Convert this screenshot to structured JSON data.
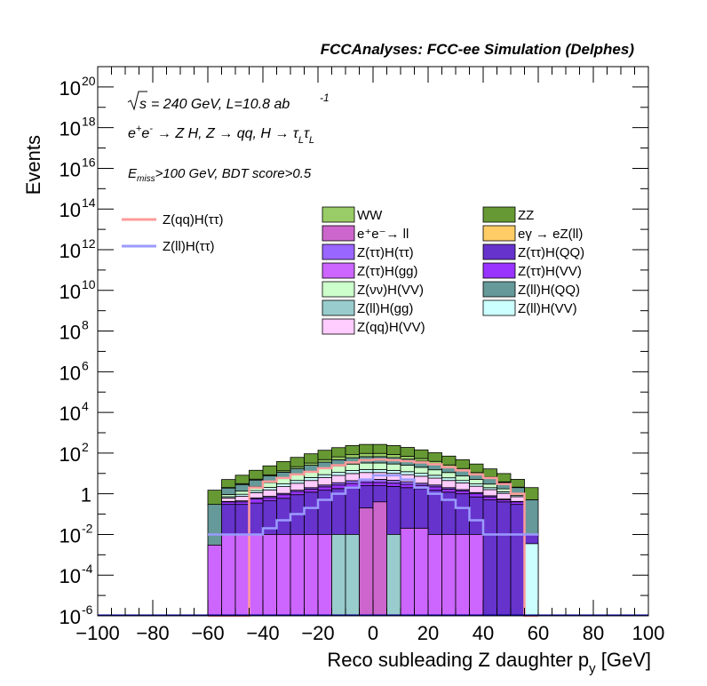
{
  "header": {
    "title": "FCCAnalyses: FCC-ee Simulation (Delphes)"
  },
  "annotations": {
    "sqrt_s": "s",
    "energy_lumi": "= 240 GeV, L=10.8 ab",
    "lumi_exp": "-1",
    "process_pre": "e",
    "process_post": "→ Z H, Z → qq, H → τ",
    "tau_sub_l": "L",
    "tau2": "τ",
    "tau_sub_l2": "L",
    "cut_e": "E",
    "cut_sub": "miss",
    "cut_rest": ">100 GeV, BDT score>0.5"
  },
  "legend_signal": [
    {
      "label": "Z(qq)H(ττ)",
      "color": "#ff9b9b"
    },
    {
      "label": "Z(ll)H(ττ)",
      "color": "#9b9bff"
    }
  ],
  "legend_bkg": [
    {
      "label": "WW",
      "color": "#99cc66"
    },
    {
      "label": "ZZ",
      "color": "#669933"
    },
    {
      "label": "e⁺e⁻→ ll",
      "color": "#cc66cc"
    },
    {
      "label": "eγ → eZ(ll)",
      "color": "#ffcc66"
    },
    {
      "label": "Z(ττ)H(ττ)",
      "color": "#9966ff"
    },
    {
      "label": "Z(ττ)H(QQ)",
      "color": "#6633cc"
    },
    {
      "label": "Z(ττ)H(gg)",
      "color": "#cc66ff"
    },
    {
      "label": "Z(ττ)H(VV)",
      "color": "#9933ff"
    },
    {
      "label": "Z(νν)H(VV)",
      "color": "#ccffcc"
    },
    {
      "label": "Z(ll)H(QQ)",
      "color": "#669999"
    },
    {
      "label": "Z(ll)H(gg)",
      "color": "#99cccc"
    },
    {
      "label": "Z(ll)H(VV)",
      "color": "#ccffff"
    },
    {
      "label": "Z(qq)H(VV)",
      "color": "#ffccff"
    }
  ],
  "chart_data": {
    "type": "histogram",
    "xlabel": "Reco subleading Z daughter p",
    "xlabel_sub": "y",
    "xlabel_unit": " [GeV]",
    "ylabel": "Events",
    "xlim": [
      -100,
      100
    ],
    "ylim": [
      1e-06,
      1e+21
    ],
    "log_y": true,
    "x_ticks": [
      "−100",
      "−80",
      "−60",
      "−40",
      "−20",
      "0",
      "20",
      "40",
      "60",
      "80",
      "100"
    ],
    "y_ticks": [
      {
        "base": "10",
        "exp": "20",
        "v": 1e+20
      },
      {
        "base": "10",
        "exp": "18",
        "v": 1e+18
      },
      {
        "base": "10",
        "exp": "16",
        "v": 1e+16
      },
      {
        "base": "10",
        "exp": "14",
        "v": 100000000000000.0
      },
      {
        "base": "10",
        "exp": "12",
        "v": 1000000000000.0
      },
      {
        "base": "10",
        "exp": "10",
        "v": 10000000000.0
      },
      {
        "base": "10",
        "exp": "8",
        "v": 100000000.0
      },
      {
        "base": "10",
        "exp": "6",
        "v": 1000000.0
      },
      {
        "base": "10",
        "exp": "4",
        "v": 10000.0
      },
      {
        "base": "10",
        "exp": "2",
        "v": 100.0
      },
      {
        "base": "1",
        "exp": "",
        "v": 1
      },
      {
        "base": "10",
        "exp": "-2",
        "v": 0.01
      },
      {
        "base": "10",
        "exp": "-4",
        "v": 0.0001
      },
      {
        "base": "10",
        "exp": "-6",
        "v": 1e-06
      }
    ],
    "bin_edges": [
      -60,
      -55,
      -50,
      -45,
      -40,
      -35,
      -30,
      -25,
      -20,
      -15,
      -10,
      -5,
      0,
      5,
      10,
      15,
      20,
      25,
      30,
      35,
      40,
      45,
      50,
      55,
      60
    ],
    "stack_layers": [
      {
        "name": "Z(ττ)H(QQ)",
        "color": "#6633cc",
        "values": [
          0.0005,
          0.3,
          0.3,
          0.35,
          0.45,
          0.6,
          0.9,
          1.2,
          1.5,
          1.8,
          2.2,
          2.5,
          2.5,
          2.3,
          2.0,
          1.8,
          1.5,
          1.2,
          1.0,
          0.7,
          0.5,
          0.4,
          0.3,
          0.01
        ]
      },
      {
        "name": "Z(ττ)H(gg)",
        "color": "#cc66ff",
        "values": [
          0,
          0,
          0,
          0,
          0,
          0,
          0,
          0,
          0,
          0,
          0,
          0,
          0,
          0,
          0,
          0,
          0,
          0,
          0,
          0,
          0,
          0,
          0,
          0
        ]
      },
      {
        "name": "Z(ll)H(gg)",
        "color": "#99cccc",
        "values": [
          0,
          0,
          0,
          0,
          0,
          0,
          0,
          0,
          0,
          0,
          0,
          0,
          0,
          0,
          0,
          0,
          0,
          0,
          0,
          0,
          0,
          0,
          0,
          0
        ]
      },
      {
        "name": "Z(ττ)H(VV)",
        "color": "#9933ff",
        "values": [
          0,
          0.1,
          0.1,
          0.2,
          0.2,
          0.3,
          0.4,
          0.5,
          0.7,
          0.9,
          1.0,
          1.1,
          1.1,
          1.0,
          0.9,
          0.8,
          0.7,
          0.5,
          0.4,
          0.3,
          0.2,
          0.1,
          0.1,
          0
        ]
      },
      {
        "name": "Z(ττ)H(ττ)",
        "color": "#9966ff",
        "values": [
          0,
          0.02,
          0.05,
          0.08,
          0.1,
          0.15,
          0.2,
          0.3,
          0.5,
          0.8,
          1.2,
          1.5,
          1.5,
          1.3,
          1.0,
          0.7,
          0.5,
          0.3,
          0.2,
          0.15,
          0.1,
          0.05,
          0.02,
          0
        ]
      },
      {
        "name": "Z(qq)H(VV)",
        "color": "#ffccff",
        "values": [
          0,
          0.2,
          0.3,
          0.5,
          0.8,
          1.2,
          1.8,
          2.5,
          3.5,
          4.5,
          5.5,
          6.0,
          6.0,
          5.5,
          4.8,
          4.0,
          3.2,
          2.5,
          1.8,
          1.2,
          0.8,
          0.5,
          0.3,
          0
        ]
      },
      {
        "name": "Z(ll)H(VV)",
        "color": "#ccffff",
        "values": [
          0,
          0.1,
          0.2,
          0.3,
          0.5,
          0.8,
          1.2,
          1.8,
          2.5,
          3.2,
          4.0,
          4.5,
          4.5,
          4.0,
          3.5,
          2.8,
          2.2,
          1.6,
          1.1,
          0.7,
          0.4,
          0.2,
          0.1,
          0
        ]
      },
      {
        "name": "Z(νν)H(VV)",
        "color": "#ccffcc",
        "values": [
          0,
          0.2,
          0.4,
          0.8,
          1.5,
          2.5,
          4,
          6,
          9,
          12,
          15,
          17,
          17,
          15,
          13,
          10,
          7,
          5,
          3,
          2,
          1,
          0.5,
          0.2,
          0
        ]
      },
      {
        "name": "Z(ll)H(QQ)",
        "color": "#669999",
        "values": [
          0.3,
          1.0,
          1.5,
          2.5,
          4,
          6,
          9,
          13,
          18,
          24,
          30,
          34,
          34,
          30,
          25,
          20,
          15,
          10,
          7,
          4.5,
          3,
          1.8,
          1.0,
          0.5
        ]
      },
      {
        "name": "WW",
        "color": "#99cc66",
        "values": [
          0,
          0.1,
          0.3,
          0.5,
          1,
          2,
          4,
          7,
          12,
          18,
          25,
          30,
          30,
          26,
          20,
          14,
          9,
          5,
          3,
          1.5,
          0.7,
          0.3,
          0.1,
          0
        ]
      },
      {
        "name": "ZZ",
        "color": "#669933",
        "values": [
          1.2,
          3,
          5,
          9,
          15,
          25,
          40,
          60,
          90,
          120,
          150,
          170,
          170,
          150,
          120,
          90,
          65,
          45,
          30,
          18,
          10,
          6,
          3,
          1.5
        ]
      }
    ],
    "overlay_bars": [
      {
        "name": "Z(ττ)H(gg)",
        "color": "#cc66ff",
        "x": [
          -60,
          -55,
          -50,
          -45,
          -40,
          -35,
          -30,
          -25,
          -20,
          10,
          15,
          20,
          25,
          30,
          35
        ],
        "w": 5,
        "values": [
          0.003,
          0.01,
          0.01,
          0.01,
          0.01,
          0.01,
          0.01,
          0.01,
          0.01,
          0.02,
          0.02,
          0.01,
          0.01,
          0.01,
          0.01
        ]
      },
      {
        "name": "Z(ττ)H(ττ)",
        "color": "#9966ff",
        "x": [
          -5,
          0
        ],
        "w": 5,
        "values": [
          0.07,
          0.07
        ]
      },
      {
        "name": "Z(ll)H(gg)",
        "color": "#99cccc",
        "x": [
          -15,
          -10,
          5
        ],
        "w": 5,
        "values": [
          0.01,
          0.01,
          0.01
        ]
      },
      {
        "name": "eγ → eZ(ll)",
        "color": "#ffcc66",
        "x": [
          -5
        ],
        "w": 5,
        "values": [
          0.01
        ]
      },
      {
        "name": "Z(ll)H(QQ)",
        "color": "#669999",
        "x": [
          55
        ],
        "w": 5,
        "values": [
          0.003
        ]
      },
      {
        "name": "Z(ll)H(VV)",
        "color": "#ccffff",
        "x": [
          55
        ],
        "w": 5,
        "values": [
          0.0035
        ]
      },
      {
        "name": "e⁺e⁻→ ll",
        "color": "#cc66cc",
        "x": [
          -5,
          0
        ],
        "w": 5,
        "values": [
          0.2,
          0.4
        ]
      }
    ],
    "signal_lines": [
      {
        "name": "Z(qq)H(ττ)",
        "color": "#ff9b9b",
        "edges": [
          -60,
          -55,
          -50,
          -45,
          -40,
          -35,
          -30,
          -25,
          -20,
          -15,
          -10,
          -5,
          0,
          5,
          10,
          15,
          20,
          25,
          30,
          35,
          40,
          45,
          50,
          55,
          60
        ],
        "values": [
          1e-06,
          1e-06,
          1e-06,
          2,
          4,
          6,
          9,
          12,
          18,
          25,
          35,
          45,
          48,
          45,
          40,
          35,
          28,
          20,
          14,
          9,
          6,
          3,
          1,
          1e-06
        ]
      },
      {
        "name": "Z(ll)H(ττ)",
        "color": "#9b9bff",
        "edges": [
          -60,
          -55,
          -50,
          -45,
          -40,
          -35,
          -30,
          -25,
          -20,
          -15,
          -10,
          -5,
          0,
          5,
          10,
          15,
          20,
          25,
          30,
          35,
          40,
          45,
          50,
          55,
          60
        ],
        "values": [
          0.01,
          0.01,
          0.01,
          0.01,
          0.02,
          0.05,
          0.1,
          0.2,
          0.5,
          1,
          2,
          5,
          8,
          8,
          5,
          2,
          1,
          0.5,
          0.2,
          0.05,
          0.01,
          0.01,
          0.01,
          0.01
        ]
      }
    ]
  }
}
